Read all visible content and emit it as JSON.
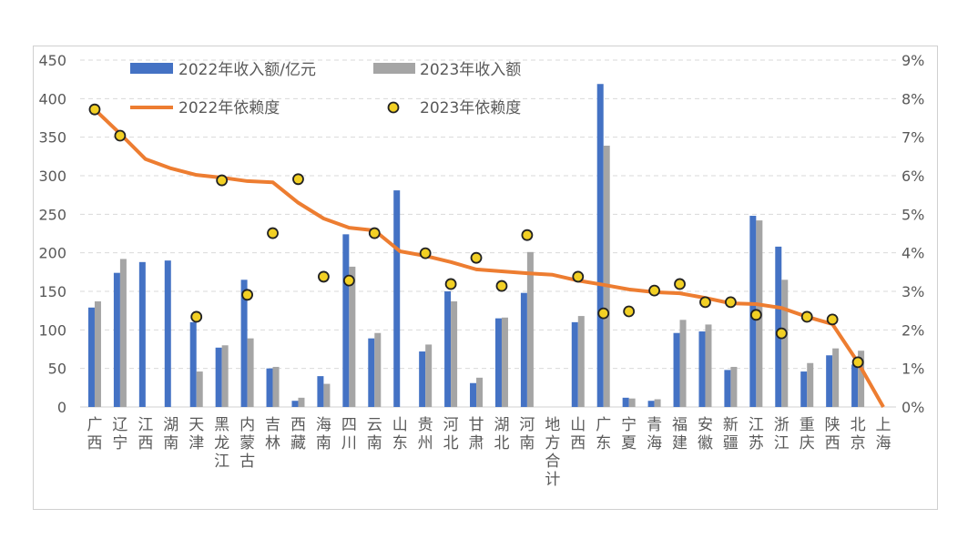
{
  "chart_data": {
    "type": "bar+line",
    "categories": [
      "广西",
      "辽宁",
      "江西",
      "湖南",
      "天津",
      "黑龙江",
      "内蒙古",
      "吉林",
      "西藏",
      "海南",
      "四川",
      "云南",
      "山东",
      "贵州",
      "河北",
      "甘肃",
      "湖北",
      "河南",
      "地方合计",
      "山西",
      "广东",
      "宁夏",
      "青海",
      "福建",
      "安徽",
      "新疆",
      "江苏",
      "浙江",
      "重庆",
      "陕西",
      "北京",
      "上海"
    ],
    "left_axis": {
      "range": [
        0,
        450
      ],
      "ticks": [
        "0",
        "50",
        "100",
        "150",
        "200",
        "250",
        "300",
        "350",
        "400",
        "450"
      ]
    },
    "right_axis": {
      "range": [
        0,
        9
      ],
      "ticks": [
        "0%",
        "1%",
        "2%",
        "3%",
        "4%",
        "5%",
        "6%",
        "7%",
        "8%",
        "9%"
      ]
    },
    "grid": "horizontal dashed",
    "legend_placement": "top-left",
    "series": [
      {
        "name": "2022年收入额/亿元",
        "type": "bar",
        "axis": "left",
        "color": "#4472C4",
        "values": [
          129,
          174,
          188,
          190,
          110,
          77,
          165,
          50,
          8,
          40,
          224,
          89,
          281,
          72,
          150,
          31,
          115,
          148,
          null,
          110,
          419,
          12,
          8,
          96,
          98,
          48,
          248,
          208,
          46,
          67,
          55,
          null
        ]
      },
      {
        "name": "2023年收入额",
        "type": "bar",
        "axis": "left",
        "color": "#A5A5A5",
        "values": [
          137,
          192,
          null,
          null,
          46,
          80,
          89,
          52,
          12,
          30,
          182,
          96,
          null,
          81,
          137,
          38,
          116,
          201,
          null,
          118,
          339,
          11,
          10,
          113,
          107,
          52,
          242,
          165,
          57,
          76,
          73,
          null
        ]
      },
      {
        "name": "2022年依赖度",
        "type": "line",
        "axis": "right",
        "unit": "%",
        "color": "#ED7D31",
        "values": [
          7.72,
          7.09,
          6.43,
          6.19,
          6.02,
          5.95,
          5.86,
          5.83,
          5.3,
          4.89,
          4.65,
          4.58,
          4.04,
          3.92,
          3.76,
          3.57,
          3.52,
          3.47,
          3.43,
          3.28,
          3.17,
          3.05,
          2.98,
          2.95,
          2.83,
          2.69,
          2.67,
          2.57,
          2.34,
          2.15,
          1.16,
          0
        ]
      },
      {
        "name": "2023年依赖度",
        "type": "scatter",
        "axis": "right",
        "unit": "%",
        "color": "#F2D024",
        "values": [
          7.72,
          7.04,
          null,
          null,
          2.34,
          5.88,
          2.91,
          4.51,
          5.91,
          3.38,
          3.28,
          4.51,
          null,
          3.99,
          3.19,
          3.87,
          3.14,
          4.46,
          null,
          3.38,
          2.43,
          2.48,
          3.02,
          3.19,
          2.72,
          2.72,
          2.39,
          1.91,
          2.34,
          2.27,
          1.16,
          null
        ]
      }
    ]
  }
}
